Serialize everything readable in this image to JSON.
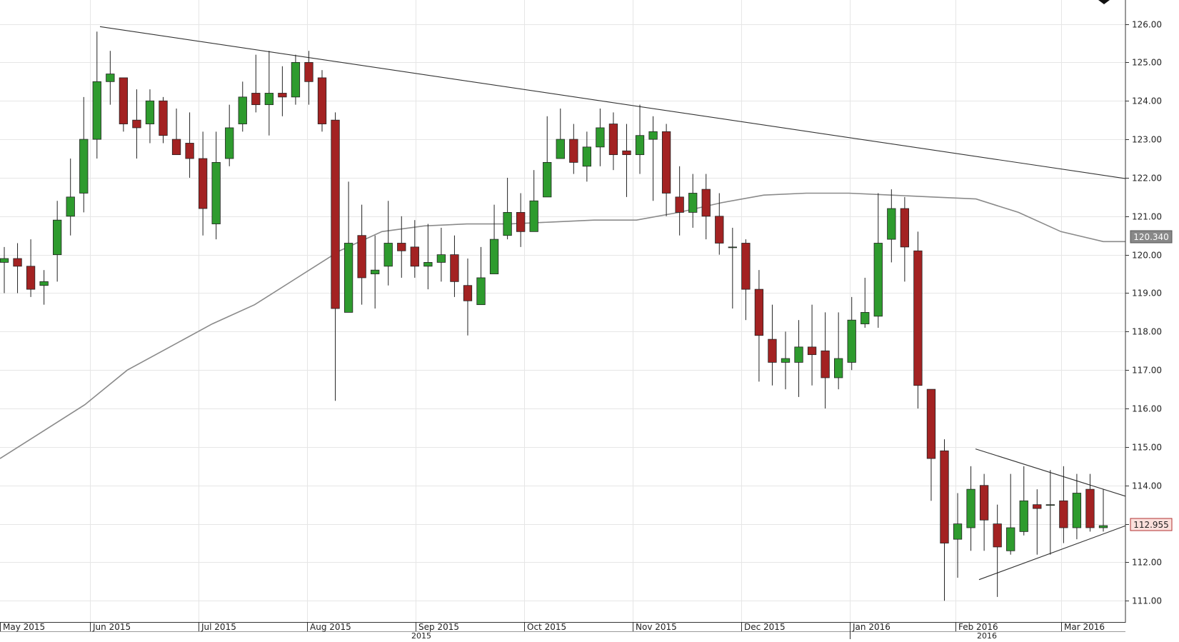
{
  "chart_data": {
    "type": "candlestick",
    "title": "",
    "xlabel": "",
    "ylabel": "",
    "ylim": [
      110.3,
      126.4
    ],
    "y_ticks": [
      "111.00",
      "112.00",
      "113.00",
      "114.00",
      "115.00",
      "116.00",
      "117.00",
      "118.00",
      "119.00",
      "120.00",
      "121.00",
      "122.00",
      "123.00",
      "124.00",
      "125.00",
      "126.00"
    ],
    "x_month_labels": [
      "May 2015",
      "Jun 2015",
      "Jul 2015",
      "Aug 2015",
      "Sep 2015",
      "Oct 2015",
      "Nov 2015",
      "Dec 2015",
      "Jan 2016",
      "Feb 2016",
      "Mar 2016"
    ],
    "year_labels": [
      "2015",
      "2016"
    ],
    "grid": true,
    "price_labels": {
      "moving_average": "120.340",
      "last_price": "112.955"
    },
    "moving_average_200": [
      114.7,
      115.4,
      116.1,
      117.0,
      117.6,
      118.2,
      118.7,
      119.4,
      120.1,
      120.6,
      120.75,
      120.8,
      120.8,
      120.85,
      120.9,
      120.9,
      121.1,
      121.35,
      121.55,
      121.6,
      121.6,
      121.55,
      121.5,
      121.45,
      121.1,
      120.6,
      120.34
    ],
    "candles": {
      "open": [
        119.8,
        119.9,
        119.7,
        119.2,
        120.0,
        121.0,
        121.6,
        123.0,
        124.5,
        124.6,
        123.5,
        123.4,
        124.0,
        123.0,
        122.9,
        122.5,
        120.8,
        122.5,
        123.4,
        124.2,
        123.9,
        124.2,
        124.1,
        125.0,
        124.6,
        123.5,
        118.5,
        120.5,
        119.5,
        119.7,
        120.3,
        120.2,
        119.7,
        119.8,
        120.0,
        119.2,
        118.7,
        119.5,
        120.5,
        121.1,
        120.6,
        121.5,
        122.5,
        123.0,
        122.3,
        122.8,
        123.4,
        122.7,
        122.6,
        123.0,
        123.2,
        121.5,
        121.1,
        121.7,
        121.0,
        120.2,
        120.3,
        119.1,
        117.8,
        117.2,
        117.2,
        117.6,
        117.5,
        116.8,
        117.2,
        118.2,
        118.4,
        120.4,
        121.2,
        120.1,
        116.5,
        114.9,
        112.6,
        112.9,
        114.0,
        113.0,
        112.3,
        112.8,
        113.5,
        113.5,
        113.6,
        112.9,
        113.9,
        112.9
      ],
      "close": [
        119.9,
        119.7,
        119.1,
        119.3,
        120.9,
        121.5,
        123.0,
        124.5,
        124.7,
        123.4,
        123.3,
        124.0,
        123.1,
        122.6,
        122.5,
        121.2,
        122.4,
        123.3,
        124.1,
        123.9,
        124.2,
        124.1,
        125.0,
        124.5,
        123.4,
        118.6,
        120.3,
        119.4,
        119.6,
        120.3,
        120.1,
        119.7,
        119.8,
        120.0,
        119.3,
        118.8,
        119.4,
        120.4,
        121.1,
        120.6,
        121.4,
        122.4,
        123.0,
        122.4,
        122.8,
        123.3,
        122.6,
        122.6,
        123.1,
        123.2,
        121.6,
        121.1,
        121.6,
        121.0,
        120.3,
        120.2,
        119.1,
        117.9,
        117.2,
        117.3,
        117.6,
        117.4,
        116.8,
        117.3,
        118.3,
        118.5,
        120.3,
        121.2,
        120.2,
        116.6,
        114.7,
        112.5,
        113.0,
        113.9,
        113.1,
        112.4,
        112.9,
        113.6,
        113.4,
        113.5,
        112.9,
        113.8,
        112.9,
        112.955
      ],
      "high": [
        120.2,
        120.3,
        120.4,
        119.6,
        121.4,
        122.5,
        124.1,
        125.8,
        125.3,
        124.6,
        124.3,
        124.3,
        124.1,
        123.8,
        123.7,
        123.2,
        123.2,
        123.9,
        124.5,
        125.2,
        125.3,
        124.9,
        125.2,
        125.3,
        124.8,
        123.7,
        121.9,
        121.3,
        120.5,
        121.4,
        121.0,
        120.9,
        120.8,
        120.7,
        120.5,
        119.9,
        120.2,
        121.3,
        122.0,
        121.6,
        122.2,
        123.6,
        123.8,
        123.4,
        123.2,
        123.8,
        123.7,
        123.4,
        123.9,
        123.6,
        123.4,
        122.3,
        122.1,
        122.1,
        121.6,
        120.7,
        120.4,
        119.6,
        118.7,
        118.0,
        118.3,
        118.7,
        118.5,
        118.5,
        118.9,
        119.4,
        121.6,
        121.7,
        121.5,
        120.6,
        115.0,
        115.2,
        113.8,
        114.5,
        114.3,
        113.5,
        114.3,
        114.5,
        113.9,
        114.4,
        114.5,
        114.3,
        114.3,
        113.9
      ],
      "low": [
        119.0,
        119.0,
        118.9,
        118.7,
        119.3,
        120.5,
        121.1,
        122.5,
        123.9,
        123.2,
        122.5,
        122.9,
        122.9,
        122.6,
        122.0,
        120.5,
        120.4,
        122.3,
        123.2,
        123.7,
        123.1,
        123.6,
        123.9,
        123.9,
        123.2,
        116.2,
        118.7,
        118.7,
        118.6,
        119.2,
        119.4,
        119.4,
        119.1,
        119.3,
        118.9,
        117.9,
        118.9,
        119.8,
        120.4,
        120.2,
        120.7,
        122.0,
        122.6,
        122.1,
        121.9,
        122.3,
        122.2,
        121.5,
        122.1,
        121.4,
        121.0,
        120.5,
        120.7,
        120.4,
        120.0,
        118.6,
        118.3,
        116.7,
        116.6,
        116.5,
        116.3,
        116.6,
        116.0,
        116.5,
        117.0,
        118.1,
        118.1,
        119.8,
        119.3,
        116.0,
        113.6,
        111.0,
        111.6,
        112.3,
        112.3,
        111.1,
        112.2,
        112.7,
        112.2,
        112.2,
        112.5,
        112.6,
        112.8,
        112.8
      ]
    }
  }
}
